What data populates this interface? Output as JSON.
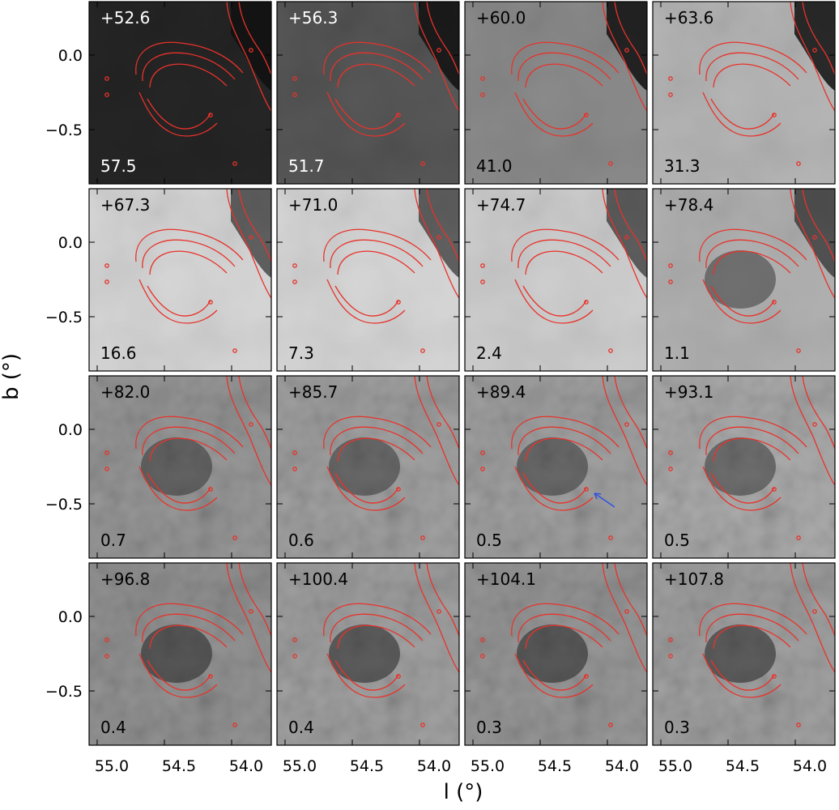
{
  "figure": {
    "y_axis_label": "b (°)",
    "x_axis_label": "l (°)",
    "y_tick_labels": [
      "0.0",
      "−0.5"
    ],
    "x_tick_labels": [
      "55.0",
      "54.5",
      "54.0"
    ],
    "colors": {
      "contour": "#e8322a",
      "arrow": "#3355dd",
      "frame": "#000000"
    },
    "panels": [
      {
        "velocity": "+52.6",
        "scale": "57.5",
        "shade": 0.15
      },
      {
        "velocity": "+56.3",
        "scale": "51.7",
        "shade": 0.35
      },
      {
        "velocity": "+60.0",
        "scale": "41.0",
        "shade": 0.55
      },
      {
        "velocity": "+63.6",
        "scale": "31.3",
        "shade": 0.72
      },
      {
        "velocity": "+67.3",
        "scale": "16.6",
        "shade": 0.85
      },
      {
        "velocity": "+71.0",
        "scale": "7.3",
        "shade": 0.85
      },
      {
        "velocity": "+74.7",
        "scale": "2.4",
        "shade": 0.82
      },
      {
        "velocity": "+78.4",
        "scale": "1.1",
        "shade": 0.7
      },
      {
        "velocity": "+82.0",
        "scale": "0.7",
        "shade": 0.62
      },
      {
        "velocity": "+85.7",
        "scale": "0.6",
        "shade": 0.66
      },
      {
        "velocity": "+89.4",
        "scale": "0.5",
        "shade": 0.66,
        "arrow": true
      },
      {
        "velocity": "+93.1",
        "scale": "0.5",
        "shade": 0.7
      },
      {
        "velocity": "+96.8",
        "scale": "0.4",
        "shade": 0.6
      },
      {
        "velocity": "+100.4",
        "scale": "0.4",
        "shade": 0.66
      },
      {
        "velocity": "+104.1",
        "scale": "0.3",
        "shade": 0.62
      },
      {
        "velocity": "+107.8",
        "scale": "0.3",
        "shade": 0.66
      }
    ]
  }
}
